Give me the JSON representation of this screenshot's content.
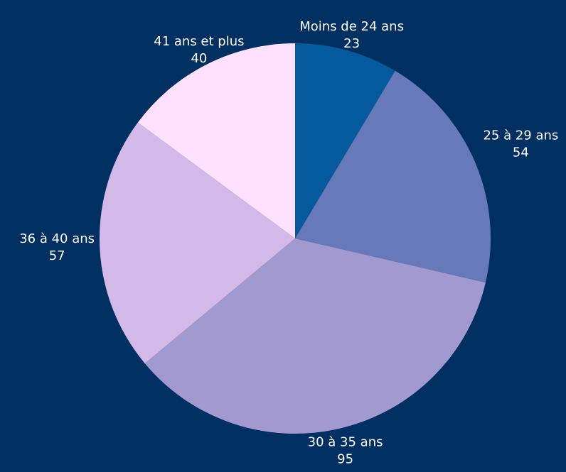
{
  "chart_data": {
    "type": "pie",
    "title": "",
    "background": "#003062",
    "start": "12 o'clock",
    "direction": "clockwise",
    "legend": "none",
    "slices": [
      {
        "label": "Moins de 24 ans",
        "value": 23,
        "color": "#045A9C"
      },
      {
        "label": "25 à 29 ans",
        "value": 54,
        "color": "#6879BA"
      },
      {
        "label": "30 à 35 ans",
        "value": 95,
        "color": "#A199D0"
      },
      {
        "label": "36 à 40 ans",
        "value": 57,
        "color": "#D3B9E7"
      },
      {
        "label": "41 ans et plus",
        "value": 40,
        "color": "#FFE0FF"
      }
    ]
  }
}
